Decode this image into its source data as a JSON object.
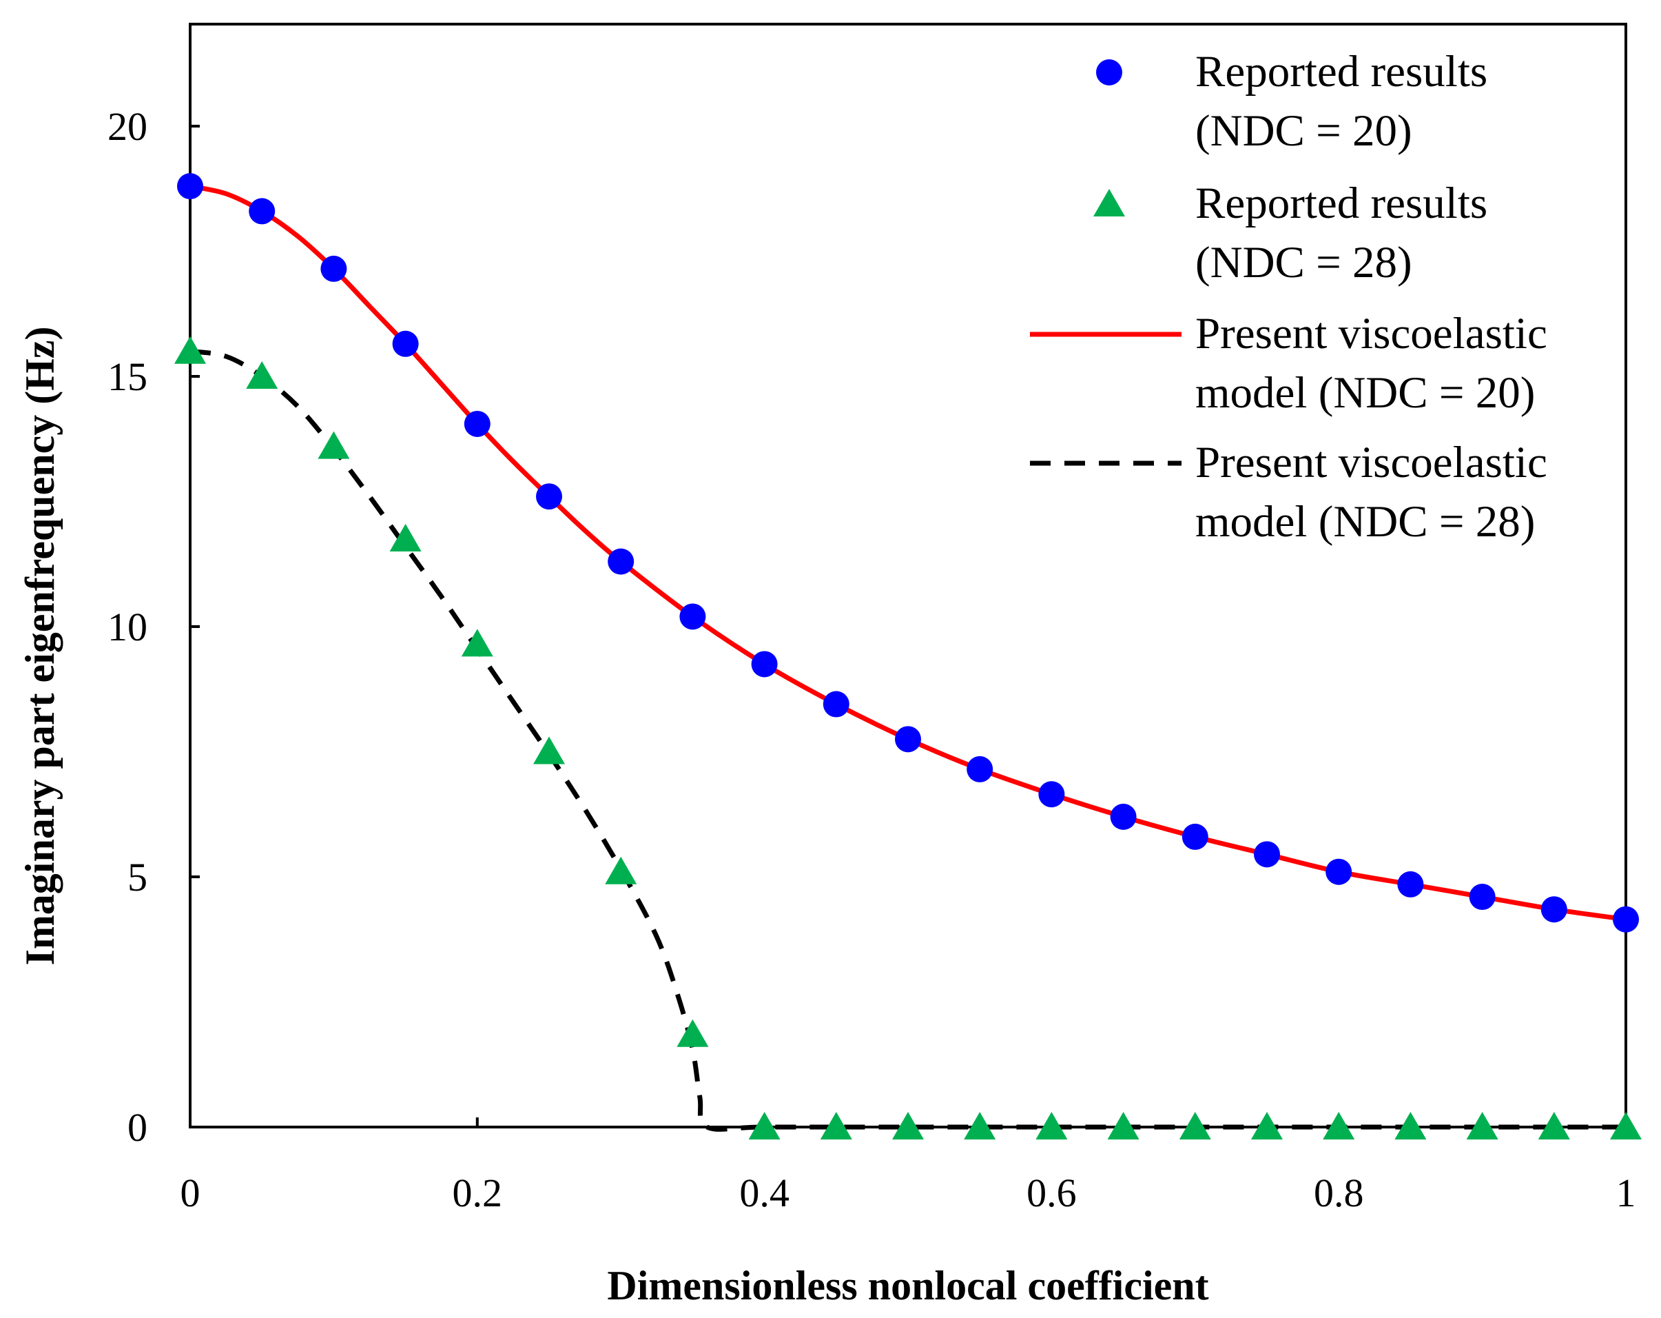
{
  "chart_data": {
    "type": "line",
    "title": "",
    "xlabel": "Dimensionless nonlocal coefficient",
    "ylabel": "Imaginary part eigenfrequency (Hz)",
    "xlim": [
      0,
      1
    ],
    "ylim": [
      0,
      22
    ],
    "xticks": [
      0,
      0.2,
      0.4,
      0.6,
      0.8,
      1
    ],
    "xtick_labels": [
      "0",
      "0.2",
      "0.4",
      "0.6",
      "0.8",
      "1"
    ],
    "yticks": [
      0,
      5,
      10,
      15,
      20
    ],
    "ytick_labels": [
      "0",
      "5",
      "10",
      "15",
      "20"
    ],
    "grid": false,
    "legend_position": "top-right",
    "series": [
      {
        "name": "Reported results (NDC = 20)",
        "legend_lines": [
          "Reported results",
          "(NDC = 20)"
        ],
        "kind": "scatter",
        "marker": "circle",
        "color": "#0000ff",
        "x": [
          0,
          0.05,
          0.1,
          0.15,
          0.2,
          0.25,
          0.3,
          0.35,
          0.4,
          0.45,
          0.5,
          0.55,
          0.6,
          0.65,
          0.7,
          0.75,
          0.8,
          0.85,
          0.9,
          0.95,
          1
        ],
        "y": [
          18.8,
          18.3,
          17.15,
          15.65,
          14.05,
          12.6,
          11.3,
          10.2,
          9.25,
          8.45,
          7.75,
          7.15,
          6.65,
          6.2,
          5.8,
          5.45,
          5.1,
          4.85,
          4.6,
          4.35,
          4.15
        ]
      },
      {
        "name": "Reported results (NDC = 28)",
        "legend_lines": [
          "Reported results",
          "(NDC = 28)"
        ],
        "kind": "scatter",
        "marker": "triangle",
        "color": "#00b050",
        "x": [
          0,
          0.05,
          0.1,
          0.15,
          0.2,
          0.25,
          0.3,
          0.35,
          0.4,
          0.45,
          0.5,
          0.55,
          0.6,
          0.65,
          0.7,
          0.75,
          0.8,
          0.85,
          0.9,
          0.95,
          1
        ],
        "y": [
          15.5,
          15.0,
          13.6,
          11.75,
          9.65,
          7.5,
          5.1,
          1.85,
          0,
          0,
          0,
          0,
          0,
          0,
          0,
          0,
          0,
          0,
          0,
          0,
          0
        ]
      },
      {
        "name": "Present viscoelastic model (NDC = 20)",
        "legend_lines": [
          "Present viscoelastic",
          "model (NDC = 20)"
        ],
        "kind": "line",
        "style": "solid",
        "color": "#ff0000",
        "x": [
          0,
          0.025,
          0.05,
          0.075,
          0.1,
          0.125,
          0.15,
          0.175,
          0.2,
          0.225,
          0.25,
          0.275,
          0.3,
          0.35,
          0.4,
          0.45,
          0.5,
          0.55,
          0.6,
          0.65,
          0.7,
          0.75,
          0.8,
          0.85,
          0.9,
          0.95,
          1
        ],
        "y": [
          18.8,
          18.65,
          18.3,
          17.8,
          17.15,
          16.4,
          15.65,
          14.85,
          14.05,
          13.3,
          12.6,
          11.92,
          11.3,
          10.2,
          9.25,
          8.45,
          7.75,
          7.15,
          6.65,
          6.2,
          5.8,
          5.45,
          5.1,
          4.85,
          4.6,
          4.35,
          4.15
        ]
      },
      {
        "name": "Present viscoelastic model (NDC = 28)",
        "legend_lines": [
          "Present viscoelastic",
          "model (NDC = 28)"
        ],
        "kind": "line",
        "style": "dashed",
        "color": "#000000",
        "x": [
          0,
          0.025,
          0.05,
          0.075,
          0.1,
          0.125,
          0.15,
          0.175,
          0.2,
          0.225,
          0.25,
          0.275,
          0.3,
          0.325,
          0.34,
          0.35,
          0.355,
          0.36,
          0.4,
          0.5,
          0.6,
          0.7,
          0.8,
          0.9,
          1
        ],
        "y": [
          15.5,
          15.4,
          15.0,
          14.4,
          13.55,
          12.6,
          11.6,
          10.6,
          9.55,
          8.5,
          7.45,
          6.35,
          5.15,
          3.8,
          2.6,
          1.55,
          0.6,
          0,
          0,
          0,
          0,
          0,
          0,
          0,
          0
        ]
      }
    ]
  }
}
